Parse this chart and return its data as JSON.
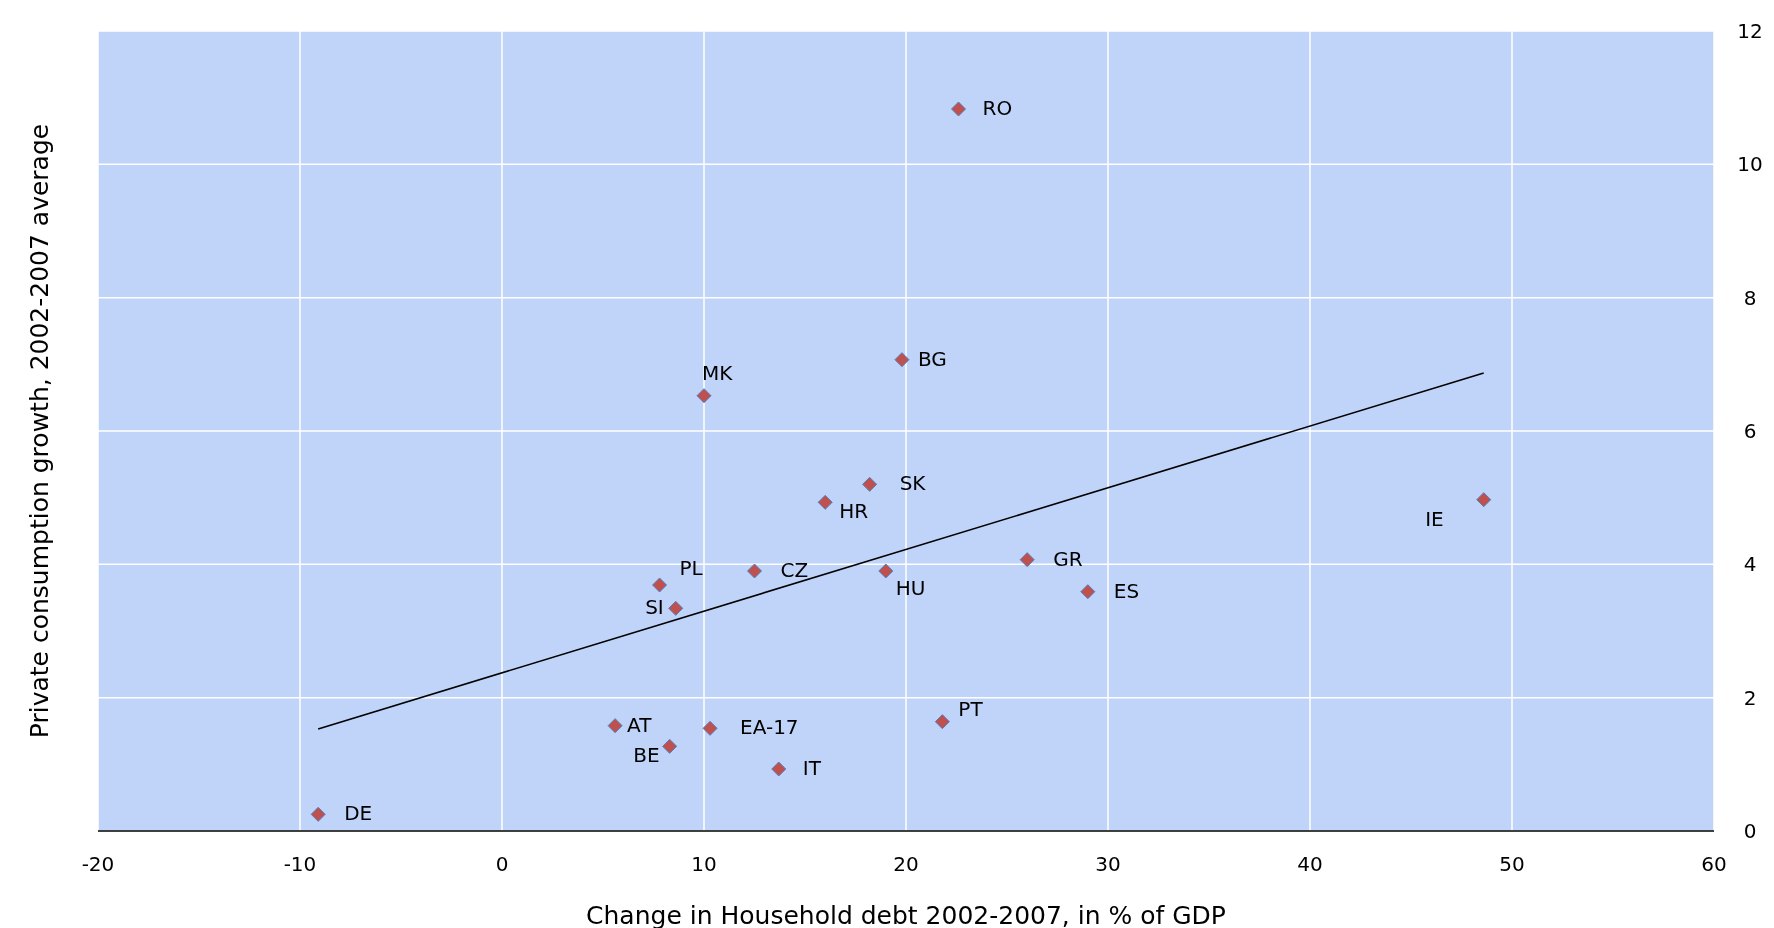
{
  "chart_data": {
    "type": "scatter",
    "xlabel": "Change in Household debt 2002-2007, in % of GDP",
    "ylabel": "Private consumption growth, 2002-2007  average",
    "xlim": [
      -20,
      60
    ],
    "xticks": [
      -20,
      -10,
      0,
      10,
      20,
      30,
      40,
      50,
      60
    ],
    "ylim": [
      0,
      12
    ],
    "yticks": [
      0,
      2,
      4,
      6,
      8,
      10,
      12
    ],
    "grid": true,
    "marker": "diamond",
    "series": [
      {
        "name": "RO",
        "color": "#c0504d",
        "x": [
          22.6
        ],
        "values": [
          10.83
        ]
      },
      {
        "name": "BG",
        "color": "#c0504d",
        "x": [
          19.8
        ],
        "values": [
          7.07
        ]
      },
      {
        "name": "MK",
        "color": "#c0504d",
        "x": [
          10.0
        ],
        "values": [
          6.53
        ]
      },
      {
        "name": "SK",
        "color": "#c0504d",
        "x": [
          18.2
        ],
        "values": [
          5.2
        ]
      },
      {
        "name": "HR",
        "color": "#c0504d",
        "x": [
          16.0
        ],
        "values": [
          4.93
        ]
      },
      {
        "name": "IE",
        "color": "#c0504d",
        "x": [
          48.6
        ],
        "values": [
          4.97
        ]
      },
      {
        "name": "GR",
        "color": "#c0504d",
        "x": [
          26.0
        ],
        "values": [
          4.07
        ]
      },
      {
        "name": "CZ",
        "color": "#c0504d",
        "x": [
          12.5
        ],
        "values": [
          3.9
        ]
      },
      {
        "name": "HU",
        "color": "#c0504d",
        "x": [
          19.0
        ],
        "values": [
          3.9
        ]
      },
      {
        "name": "PL",
        "color": "#c0504d",
        "x": [
          7.8
        ],
        "values": [
          3.69
        ]
      },
      {
        "name": "ES",
        "color": "#c0504d",
        "x": [
          29.0
        ],
        "values": [
          3.59
        ]
      },
      {
        "name": "SI",
        "color": "#c0504d",
        "x": [
          8.6
        ],
        "values": [
          3.34
        ]
      },
      {
        "name": "PT",
        "color": "#c0504d",
        "x": [
          21.8
        ],
        "values": [
          1.64
        ]
      },
      {
        "name": "AT",
        "color": "#c0504d",
        "x": [
          5.6
        ],
        "values": [
          1.58
        ]
      },
      {
        "name": "EA-17",
        "color": "#c0504d",
        "x": [
          10.3
        ],
        "values": [
          1.54
        ]
      },
      {
        "name": "BE",
        "color": "#c0504d",
        "x": [
          8.3
        ],
        "values": [
          1.27
        ]
      },
      {
        "name": "IT",
        "color": "#c0504d",
        "x": [
          13.7
        ],
        "values": [
          0.93
        ]
      },
      {
        "name": "DE",
        "color": "#c0504d",
        "x": [
          -9.1
        ],
        "values": [
          0.25
        ]
      },
      {
        "type": "line",
        "marker": "none",
        "color": "#000000",
        "x": [
          -9.1,
          48.6
        ],
        "values": [
          1.53,
          6.87
        ]
      }
    ]
  }
}
